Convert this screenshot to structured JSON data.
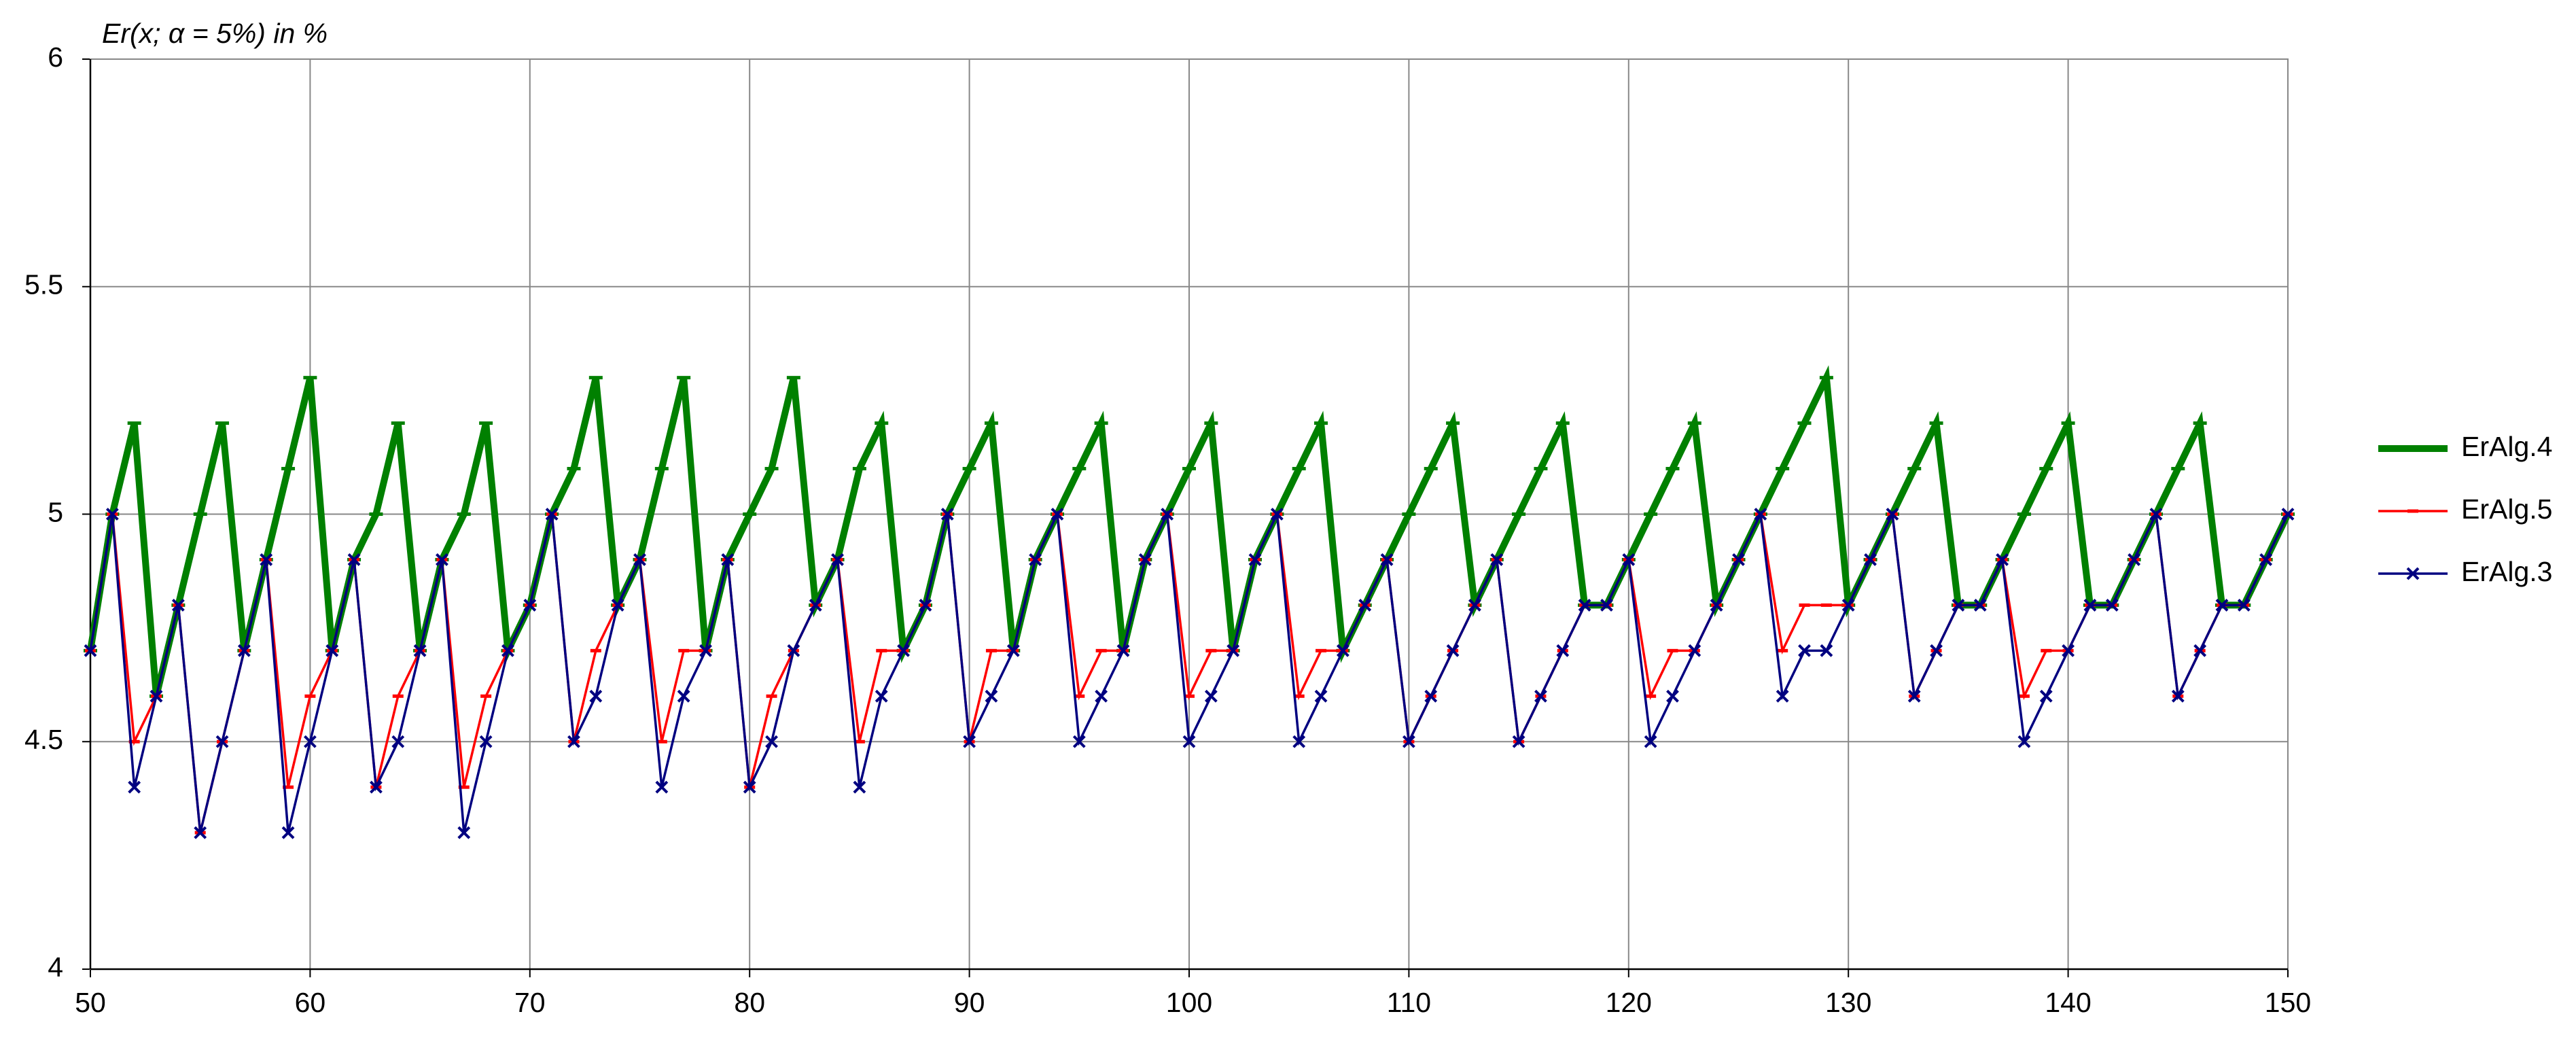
{
  "chart_data": {
    "type": "line",
    "title": "Er(x; α = 5%) in %",
    "x": [
      50,
      51,
      52,
      53,
      54,
      55,
      56,
      57,
      58,
      59,
      60,
      61,
      62,
      63,
      64,
      65,
      66,
      67,
      68,
      69,
      70,
      71,
      72,
      73,
      74,
      75,
      76,
      77,
      78,
      79,
      80,
      81,
      82,
      83,
      84,
      85,
      86,
      87,
      88,
      89,
      90,
      91,
      92,
      93,
      94,
      95,
      96,
      97,
      98,
      99,
      100,
      101,
      102,
      103,
      104,
      105,
      106,
      107,
      108,
      109,
      110,
      111,
      112,
      113,
      114,
      115,
      116,
      117,
      118,
      119,
      120,
      121,
      122,
      123,
      124,
      125,
      126,
      127,
      128,
      129,
      130,
      131,
      132,
      133,
      134,
      135,
      136,
      137,
      138,
      139,
      140,
      141,
      142,
      143,
      144,
      145,
      146,
      147,
      148,
      149,
      150
    ],
    "series": [
      {
        "name": "ErAlg.4",
        "color": "#008000",
        "values": [
          4.7,
          5.0,
          5.2,
          4.6,
          4.8,
          5.0,
          5.2,
          4.7,
          4.9,
          5.1,
          5.3,
          4.7,
          4.9,
          5.0,
          5.2,
          4.7,
          4.9,
          5.0,
          5.2,
          4.7,
          4.8,
          5.0,
          5.1,
          5.3,
          4.8,
          4.9,
          5.1,
          5.3,
          4.7,
          4.9,
          5.0,
          5.1,
          5.3,
          4.8,
          4.9,
          5.1,
          5.2,
          4.7,
          4.8,
          5.0,
          5.1,
          5.2,
          4.7,
          4.9,
          5.0,
          5.1,
          5.2,
          4.7,
          4.9,
          5.0,
          5.1,
          5.2,
          4.7,
          4.9,
          5.0,
          5.1,
          5.2,
          4.7,
          4.8,
          4.9,
          5.0,
          5.1,
          5.2,
          4.8,
          4.9,
          5.0,
          5.1,
          5.2,
          4.8,
          4.8,
          4.9,
          5.0,
          5.1,
          5.2,
          4.8,
          4.9,
          5.0,
          5.1,
          5.2,
          5.3,
          4.8,
          4.9,
          5.0,
          5.1,
          5.2,
          4.8,
          4.8,
          4.9,
          5.0,
          5.1,
          5.2,
          4.8,
          4.8,
          4.9,
          5.0,
          5.1,
          5.2,
          4.8,
          4.8,
          4.9,
          5.0
        ]
      },
      {
        "name": "ErAlg.5",
        "color": "#ff0000",
        "values": [
          4.7,
          5.0,
          4.5,
          4.6,
          4.8,
          4.3,
          4.5,
          4.7,
          4.9,
          4.4,
          4.6,
          4.7,
          4.9,
          4.4,
          4.6,
          4.7,
          4.9,
          4.4,
          4.6,
          4.7,
          4.8,
          5.0,
          4.5,
          4.7,
          4.8,
          4.9,
          4.5,
          4.7,
          4.7,
          4.9,
          4.4,
          4.6,
          4.7,
          4.8,
          4.9,
          4.5,
          4.7,
          4.7,
          4.8,
          5.0,
          4.5,
          4.7,
          4.7,
          4.9,
          5.0,
          4.6,
          4.7,
          4.7,
          4.9,
          5.0,
          4.6,
          4.7,
          4.7,
          4.9,
          5.0,
          4.6,
          4.7,
          4.7,
          4.8,
          4.9,
          4.5,
          4.6,
          4.7,
          4.8,
          4.9,
          4.5,
          4.6,
          4.7,
          4.8,
          4.8,
          4.9,
          4.6,
          4.7,
          4.7,
          4.8,
          4.9,
          5.0,
          4.7,
          4.8,
          4.8,
          4.8,
          4.9,
          5.0,
          4.6,
          4.7,
          4.8,
          4.8,
          4.9,
          4.6,
          4.7,
          4.7,
          4.8,
          4.8,
          4.9,
          5.0,
          4.6,
          4.7,
          4.8,
          4.8,
          4.9,
          5.0
        ]
      },
      {
        "name": "ErAlg.3",
        "color": "#000080",
        "values": [
          4.7,
          5.0,
          4.4,
          4.6,
          4.8,
          4.3,
          4.5,
          4.7,
          4.9,
          4.3,
          4.5,
          4.7,
          4.9,
          4.4,
          4.5,
          4.7,
          4.9,
          4.3,
          4.5,
          4.7,
          4.8,
          5.0,
          4.5,
          4.6,
          4.8,
          4.9,
          4.4,
          4.6,
          4.7,
          4.9,
          4.4,
          4.5,
          4.7,
          4.8,
          4.9,
          4.4,
          4.6,
          4.7,
          4.8,
          5.0,
          4.5,
          4.6,
          4.7,
          4.9,
          5.0,
          4.5,
          4.6,
          4.7,
          4.9,
          5.0,
          4.5,
          4.6,
          4.7,
          4.9,
          5.0,
          4.5,
          4.6,
          4.7,
          4.8,
          4.9,
          4.5,
          4.6,
          4.7,
          4.8,
          4.9,
          4.5,
          4.6,
          4.7,
          4.8,
          4.8,
          4.9,
          4.5,
          4.6,
          4.7,
          4.8,
          4.9,
          5.0,
          4.6,
          4.7,
          4.7,
          4.8,
          4.9,
          5.0,
          4.6,
          4.7,
          4.8,
          4.8,
          4.9,
          4.5,
          4.6,
          4.7,
          4.8,
          4.8,
          4.9,
          5.0,
          4.6,
          4.7,
          4.8,
          4.8,
          4.9,
          5.0
        ]
      }
    ],
    "xlim": [
      50,
      150
    ],
    "xticks": [
      50,
      60,
      70,
      80,
      90,
      100,
      110,
      120,
      130,
      140,
      150
    ],
    "ylim": [
      4,
      6
    ],
    "yticks": [
      4,
      4.5,
      5,
      5.5,
      6
    ],
    "grid": true,
    "legend": "right"
  }
}
